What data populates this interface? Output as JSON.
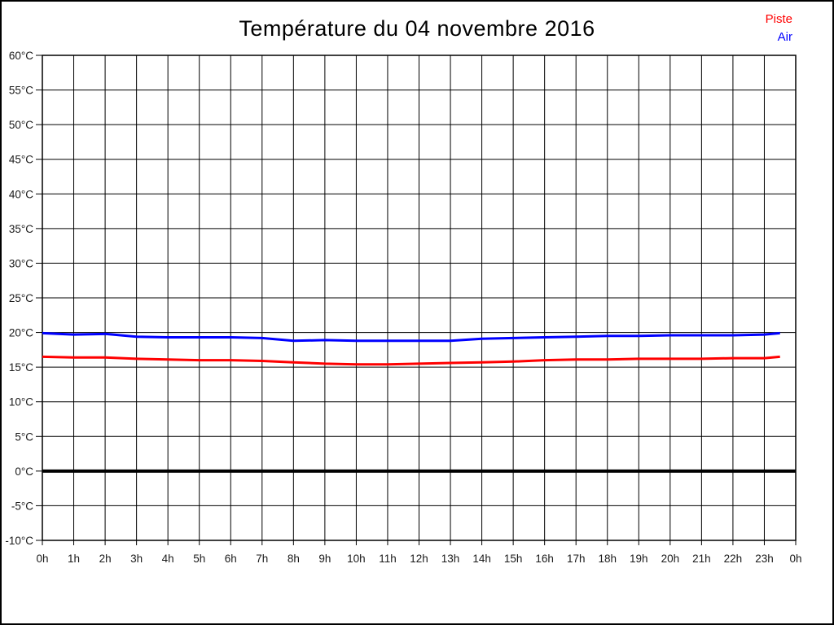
{
  "page": {
    "background": "#ffffff",
    "border_color": "#000000"
  },
  "chart_data": {
    "type": "line",
    "title": "Température du 04 novembre 2016",
    "xlabel": "",
    "ylabel": "",
    "grid": "on",
    "grid_color": "#000000",
    "xlim": [
      0,
      24
    ],
    "ylim": [
      -10,
      60
    ],
    "y_tick_step": 5,
    "y_tick_suffix": "°C",
    "y_tick_labels": [
      "60°C",
      "55°C",
      "50°C",
      "45°C",
      "40°C",
      "35°C",
      "30°C",
      "25°C",
      "20°C",
      "15°C",
      "10°C",
      "5°C",
      "0°C",
      "-5°C",
      "-10°C"
    ],
    "x_tick_labels": [
      "0h",
      "1h",
      "2h",
      "3h",
      "4h",
      "5h",
      "6h",
      "7h",
      "8h",
      "9h",
      "10h",
      "11h",
      "12h",
      "13h",
      "14h",
      "15h",
      "16h",
      "17h",
      "18h",
      "19h",
      "20h",
      "21h",
      "22h",
      "23h",
      "0h"
    ],
    "zero_line": {
      "value": 0,
      "color": "#000000",
      "width": 4
    },
    "legend_position": "top-right",
    "series": [
      {
        "name": "Piste",
        "color": "#ff0000",
        "x": [
          0,
          1,
          2,
          3,
          4,
          5,
          6,
          7,
          8,
          9,
          10,
          11,
          12,
          13,
          14,
          15,
          16,
          17,
          18,
          19,
          20,
          21,
          22,
          23,
          23.5
        ],
        "values": [
          16.5,
          16.4,
          16.4,
          16.2,
          16.1,
          16.0,
          16.0,
          15.9,
          15.7,
          15.5,
          15.4,
          15.4,
          15.5,
          15.6,
          15.7,
          15.8,
          16.0,
          16.1,
          16.1,
          16.2,
          16.2,
          16.2,
          16.3,
          16.3,
          16.5
        ]
      },
      {
        "name": "Air",
        "color": "#0000ff",
        "x": [
          0,
          1,
          2,
          3,
          4,
          5,
          6,
          7,
          8,
          9,
          10,
          11,
          12,
          13,
          14,
          15,
          16,
          17,
          18,
          19,
          20,
          21,
          22,
          23,
          23.5
        ],
        "values": [
          19.9,
          19.7,
          19.8,
          19.4,
          19.3,
          19.3,
          19.3,
          19.2,
          18.8,
          18.9,
          18.8,
          18.8,
          18.8,
          18.8,
          19.1,
          19.2,
          19.3,
          19.4,
          19.5,
          19.5,
          19.6,
          19.6,
          19.6,
          19.7,
          19.9
        ]
      }
    ]
  }
}
